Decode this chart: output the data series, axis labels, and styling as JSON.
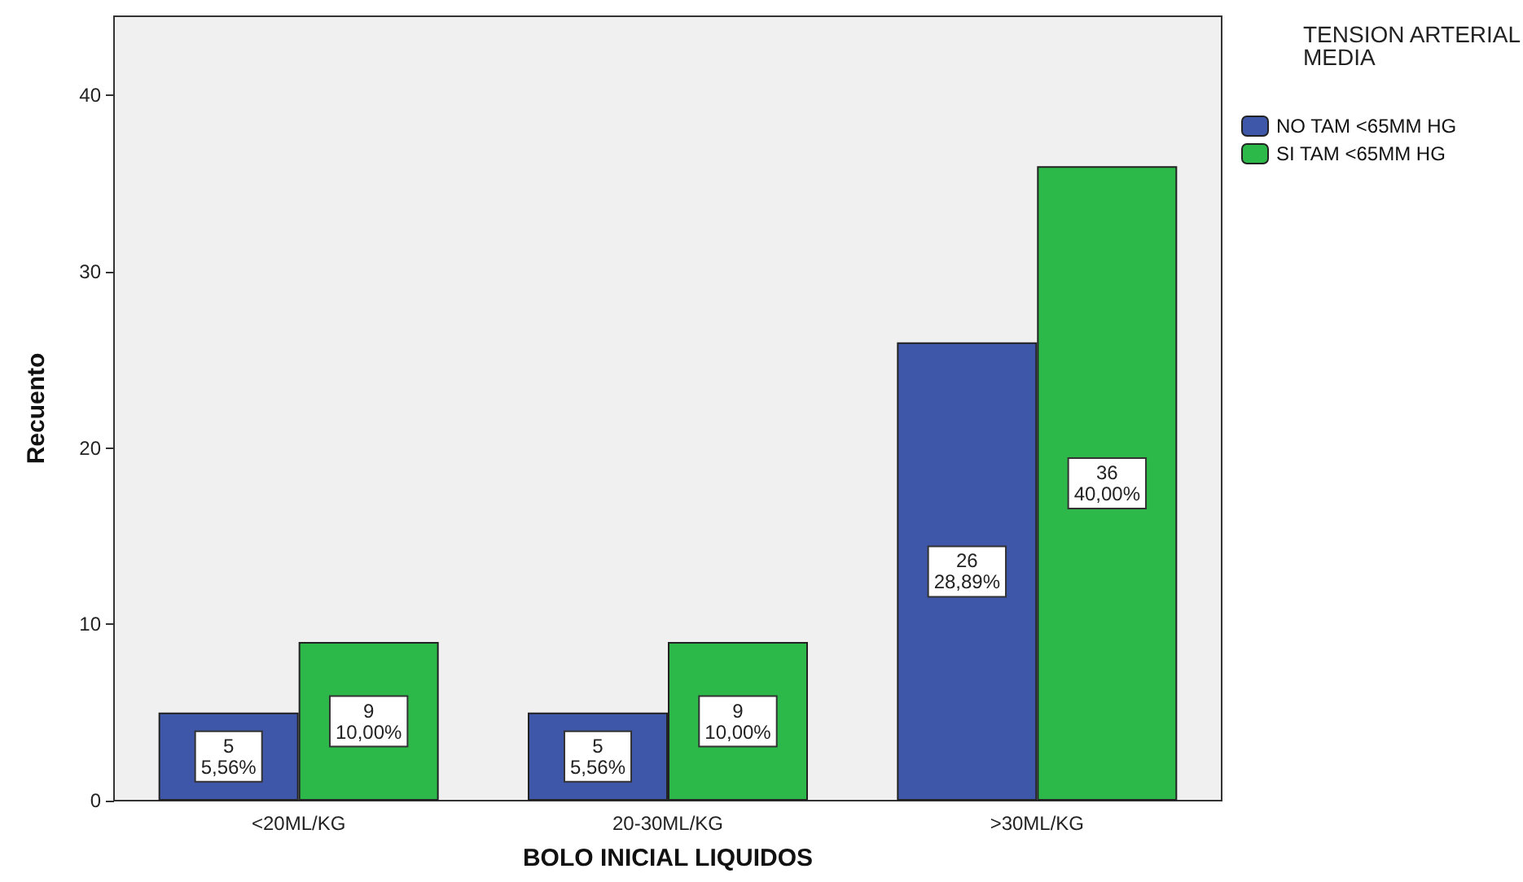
{
  "chart_data": {
    "type": "bar",
    "xlabel": "BOLO INICIAL LIQUIDOS",
    "ylabel": "Recuento",
    "legend_title": "TENSION ARTERIAL MEDIA",
    "categories": [
      "<20ML/KG",
      "20-30ML/KG",
      ">30ML/KG"
    ],
    "series": [
      {
        "name": "NO TAM <65MM HG",
        "color": "#3f57a8",
        "values": [
          5,
          5,
          26
        ],
        "value_labels": [
          "5\n5,56%",
          "5\n5,56%",
          "26\n28,89%"
        ]
      },
      {
        "name": "SI TAM <65MM HG",
        "color": "#2db84a",
        "values": [
          9,
          9,
          36
        ],
        "value_labels": [
          "9\n10,00%",
          "9\n10,00%",
          "36\n40,00%"
        ]
      }
    ],
    "ylim": [
      0,
      44.5
    ],
    "yticks": [
      0,
      10,
      20,
      30,
      40
    ],
    "grid": false,
    "legend": "top right"
  }
}
